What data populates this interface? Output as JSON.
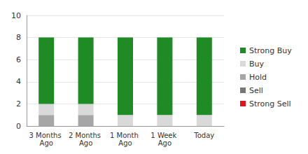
{
  "chart_data": {
    "type": "bar",
    "stacked": true,
    "grid": true,
    "legend": "right",
    "categories": [
      "3 Months Ago",
      "2 Months Ago",
      "1 Month Ago",
      "1 Week Ago",
      "Today"
    ],
    "series": [
      {
        "name": "Strong Buy",
        "color": "#1f8b24",
        "values": [
          6,
          6,
          7,
          7,
          7
        ]
      },
      {
        "name": "Buy",
        "color": "#d9d9d9",
        "values": [
          1,
          1,
          1,
          1,
          1
        ]
      },
      {
        "name": "Hold",
        "color": "#a6a6a6",
        "values": [
          1,
          1,
          0,
          0,
          0
        ]
      },
      {
        "name": "Sell",
        "color": "#777777",
        "values": [
          0,
          0,
          0,
          0,
          0
        ]
      },
      {
        "name": "Strong Sell",
        "color": "#e0141e",
        "values": [
          0,
          0,
          0,
          0,
          0
        ]
      }
    ],
    "totals": [
      8,
      8,
      8,
      8,
      8
    ],
    "ylim": [
      0,
      10
    ],
    "yticks": [
      0,
      2,
      4,
      6,
      8,
      10
    ]
  }
}
